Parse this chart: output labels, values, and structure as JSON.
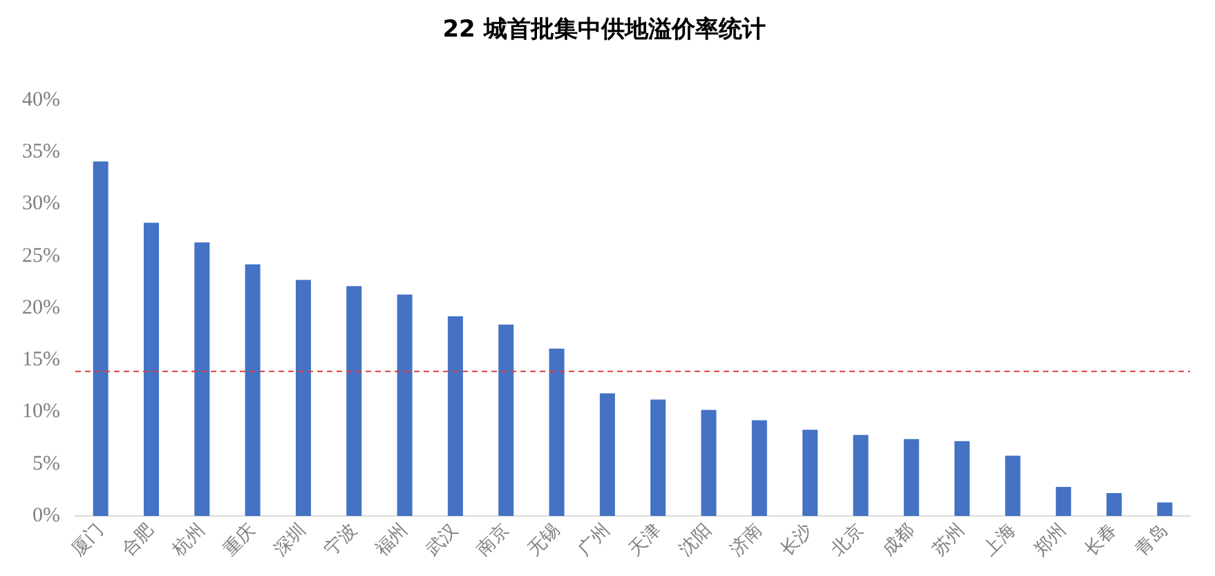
{
  "chart_data": {
    "type": "bar",
    "title": "22 城首批集中供地溢价率统计",
    "categories": [
      "厦门",
      "合肥",
      "杭州",
      "重庆",
      "深圳",
      "宁波",
      "福州",
      "武汉",
      "南京",
      "无锡",
      "广州",
      "天津",
      "沈阳",
      "济南",
      "长沙",
      "北京",
      "成都",
      "苏州",
      "上海",
      "郑州",
      "长春",
      "青岛"
    ],
    "values": [
      34.1,
      28.2,
      26.3,
      24.2,
      22.7,
      22.1,
      21.3,
      19.2,
      18.4,
      16.1,
      11.8,
      11.2,
      10.2,
      9.2,
      8.3,
      7.8,
      7.4,
      7.2,
      5.8,
      2.8,
      2.2,
      1.3
    ],
    "color": "#4472c4",
    "ylim": [
      0,
      40
    ],
    "yticks": [
      {
        "value": 0,
        "label": "0%"
      },
      {
        "value": 5,
        "label": "5%"
      },
      {
        "value": 10,
        "label": "10%"
      },
      {
        "value": 15,
        "label": "15%"
      },
      {
        "value": 20,
        "label": "20%"
      },
      {
        "value": 25,
        "label": "25%"
      },
      {
        "value": 30,
        "label": "30%"
      },
      {
        "value": 35,
        "label": "35%"
      },
      {
        "value": 40,
        "label": "40%"
      }
    ],
    "ref_lines": [
      {
        "axis": "y",
        "value": 13.9,
        "color": "#e03c3c",
        "line_style": "dashed"
      }
    ],
    "grid": false,
    "legend": false
  }
}
